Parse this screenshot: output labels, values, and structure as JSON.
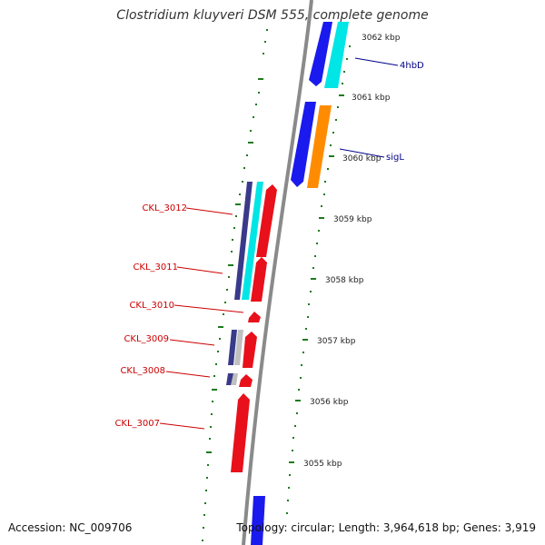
{
  "title": "Clostridium kluyveri DSM 555, complete genome",
  "footer": {
    "accession": "Accession: NC_009706",
    "summary": "Topology: circular; Length: 3,964,618 bp; Genes: 3,919"
  },
  "colors": {
    "backbone": "#8a8a8a",
    "ticks": "#1e7a1e",
    "forward_strand": "#e8101a",
    "blue_gene": "#1a1aee",
    "cyan_gene": "#00e5e5",
    "orange_gene": "#ff8c00",
    "navy_gene": "#3a3a8a",
    "right_labels": "#00008b",
    "left_labels": "#cc0000"
  },
  "kbp_ticks": [
    "3062 kbp",
    "3061 kbp",
    "3060 kbp",
    "3059 kbp",
    "3058 kbp",
    "3057 kbp",
    "3056 kbp",
    "3055 kbp"
  ],
  "right_gene_labels": [
    "4hbD",
    "sigL"
  ],
  "left_gene_labels": [
    "CKL_3012",
    "CKL_3011",
    "CKL_3010",
    "CKL_3009",
    "CKL_3008",
    "CKL_3007"
  ]
}
